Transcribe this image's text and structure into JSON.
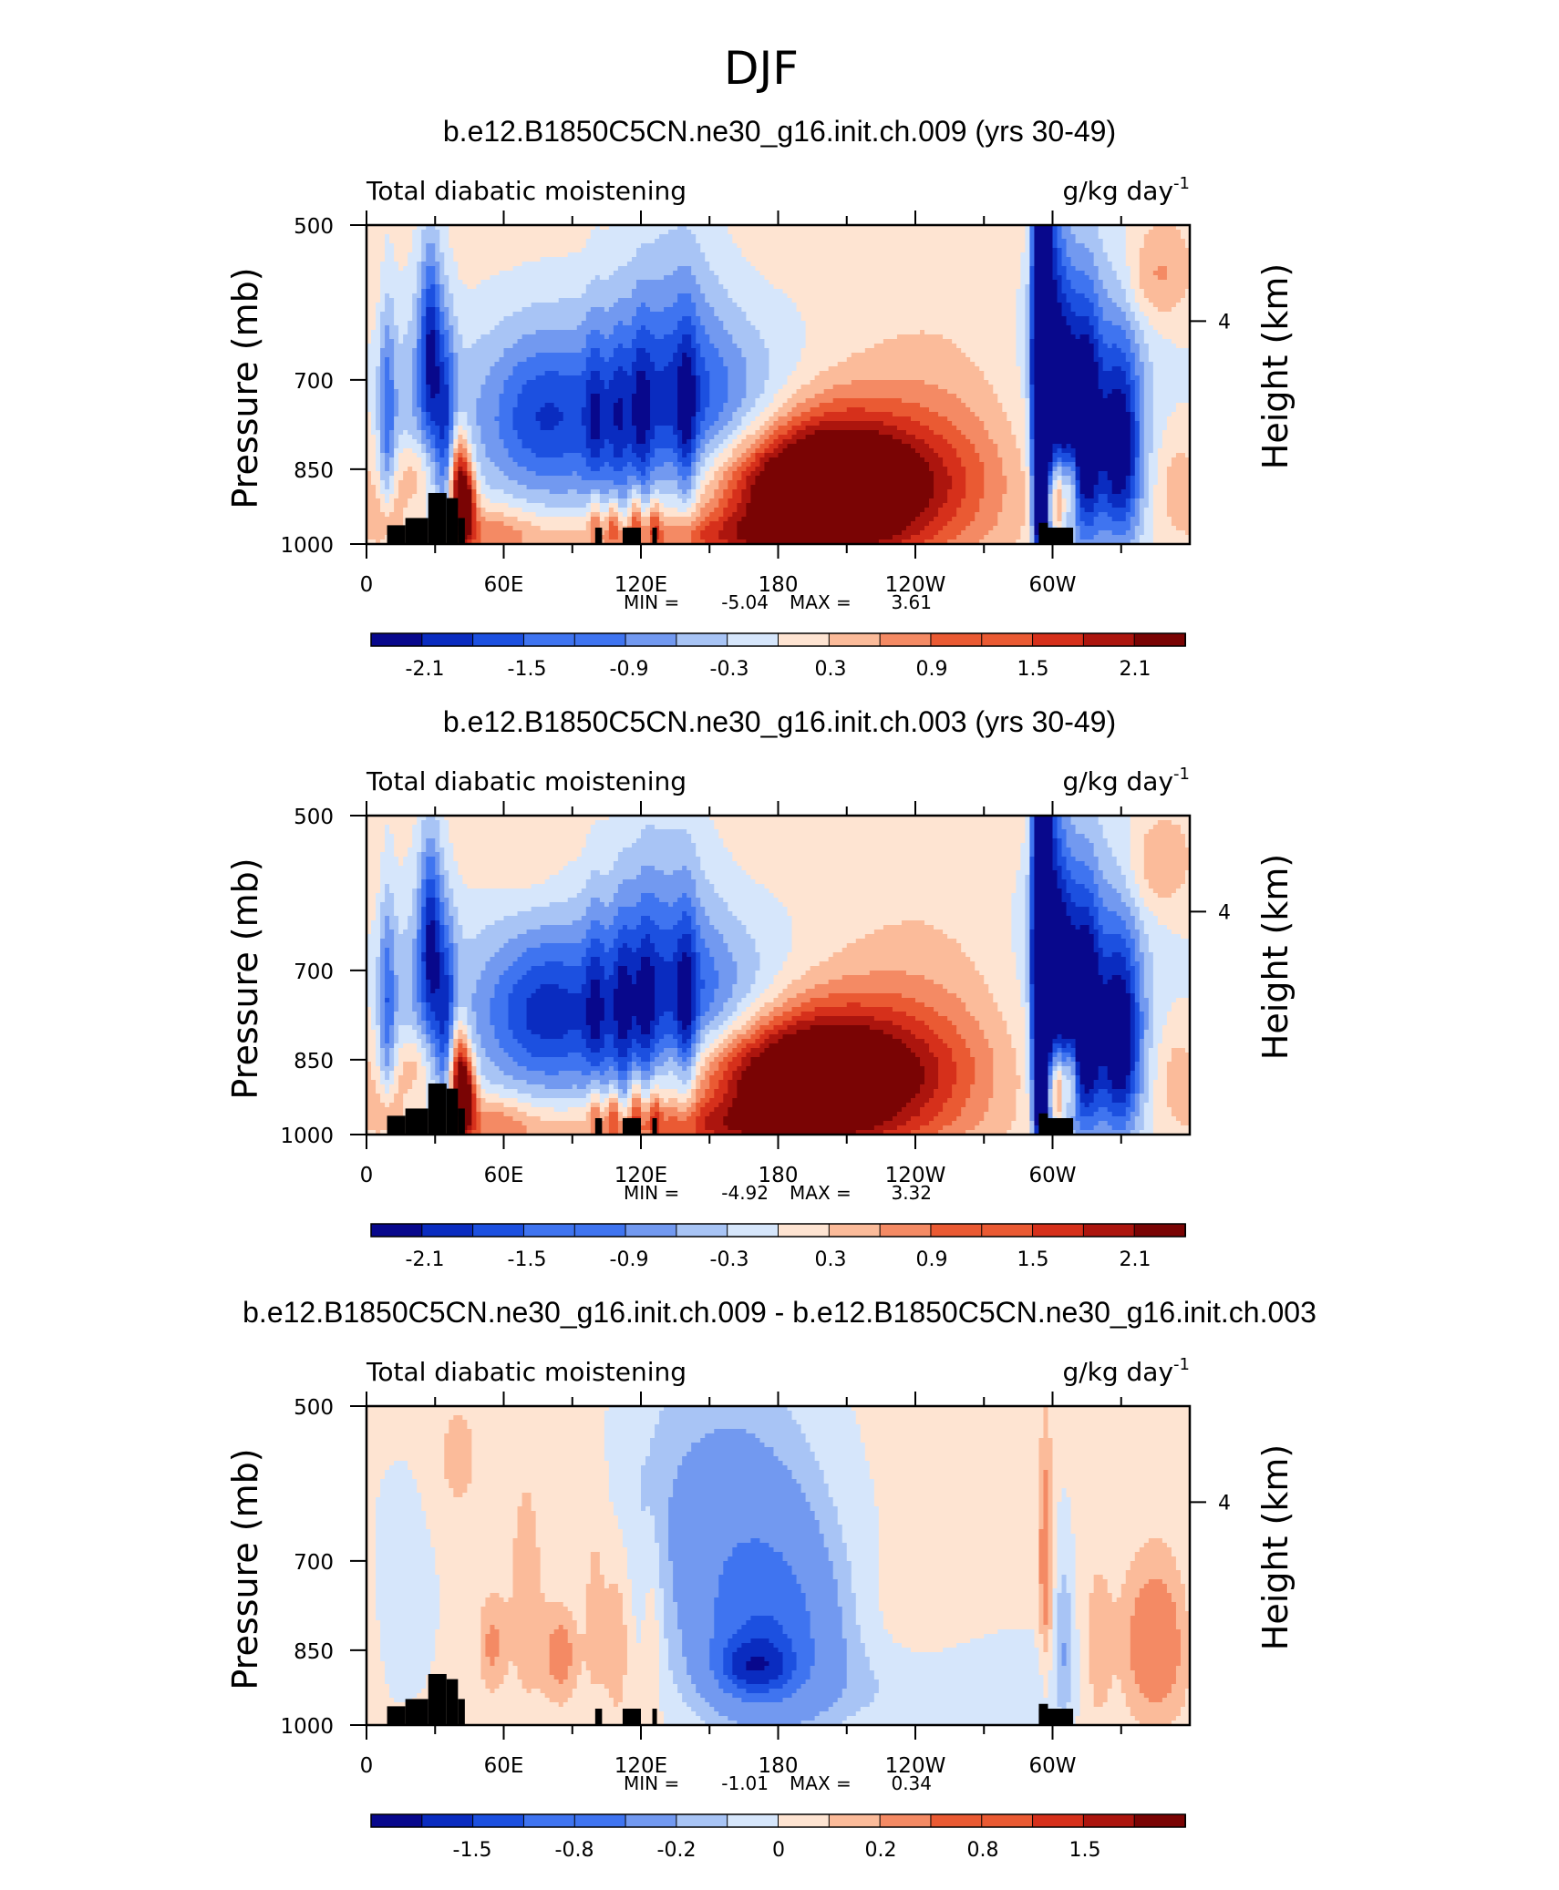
{
  "figure_title": "DJF",
  "chart_data": [
    {
      "type": "heatmap",
      "title": "b.e12.B1850C5CN.ne30_g16.init.ch.009 (yrs 30-49)",
      "subtitle_left": "Total diabatic moistening",
      "units": "g/kg day",
      "units_exponent": "-1",
      "ylabel": "Pressure (mb)",
      "ylabel_right": "Height (km)",
      "x_ticklabels": [
        "0",
        "60E",
        "120E",
        "180",
        "120W",
        "60W"
      ],
      "y_ticklabels": [
        "500",
        "700",
        "850",
        "1000"
      ],
      "right_ticklabels": [
        "4"
      ],
      "stats": {
        "min_label": "MIN =",
        "min": "-5.04",
        "max_label": "MAX =",
        "max": "3.61"
      },
      "colorbar_labels": [
        "-2.1",
        "-1.5",
        "-0.9",
        "-0.3",
        "0.3",
        "0.9",
        "1.5",
        "2.1"
      ],
      "colorbar_colors": [
        "#08088c",
        "#0a2cc0",
        "#1c50e0",
        "#3f74f0",
        "#7299f0",
        "#a8c4f5",
        "#d6e6fb",
        "#fee4d2",
        "#fbbb9a",
        "#f48a64",
        "#ea5a33",
        "#d6301b",
        "#ac150e",
        "#7a0404"
      ],
      "features": [
        {
          "lon": 195,
          "p": 880,
          "v": 3.2,
          "wl": 30,
          "wp": 95
        },
        {
          "lon": 245,
          "p": 830,
          "v": 0.7,
          "wl": 32,
          "wp": 125
        },
        {
          "lon": 240,
          "p": 890,
          "v": 0.5,
          "wl": 28,
          "wp": 70
        },
        {
          "lon": 155,
          "p": 985,
          "v": 0.9,
          "wl": 60,
          "wp": 35
        },
        {
          "lon": 55,
          "p": 980,
          "v": 0.7,
          "wl": 12,
          "wp": 45
        },
        {
          "lon": 115,
          "p": 755,
          "v": -1.3,
          "wl": 52,
          "wp": 115
        },
        {
          "lon": 75,
          "p": 760,
          "v": -0.6,
          "wl": 14,
          "wp": 85
        },
        {
          "lon": 135,
          "p": 650,
          "v": -0.6,
          "wl": 15,
          "wp": 150
        },
        {
          "lon": 165,
          "p": 760,
          "v": -0.4,
          "wl": 18,
          "wp": 70
        },
        {
          "lon": 100,
          "p": 780,
          "v": -0.6,
          "wl": 3,
          "wp": 130
        },
        {
          "lon": 110,
          "p": 775,
          "v": -0.5,
          "wl": 3,
          "wp": 125
        },
        {
          "lon": 120,
          "p": 770,
          "v": -0.6,
          "wl": 3,
          "wp": 125
        },
        {
          "lon": 140,
          "p": 780,
          "v": -0.8,
          "wl": 3,
          "wp": 120
        },
        {
          "lon": 28,
          "p": 650,
          "v": -1.6,
          "wl": 3.5,
          "wp": 100
        },
        {
          "lon": 35,
          "p": 780,
          "v": -1.2,
          "wl": 3.5,
          "wp": 120
        },
        {
          "lon": 9,
          "p": 760,
          "v": -1.0,
          "wl": 2.5,
          "wp": 130
        },
        {
          "lon": 20,
          "p": 760,
          "v": -0.4,
          "wl": 7,
          "wp": 150
        },
        {
          "lon": 40,
          "p": 880,
          "v": 2.0,
          "wl": 3,
          "wp": 75
        },
        {
          "lon": 44,
          "p": 920,
          "v": 1.8,
          "wl": 3,
          "wp": 55
        },
        {
          "lon": 20,
          "p": 860,
          "v": 0.8,
          "wl": 6,
          "wp": 50
        },
        {
          "lon": 10,
          "p": 950,
          "v": 0.6,
          "wl": 5,
          "wp": 45
        },
        {
          "lon": 100,
          "p": 940,
          "v": 0.9,
          "wl": 2,
          "wp": 50
        },
        {
          "lon": 108,
          "p": 950,
          "v": 0.9,
          "wl": 2,
          "wp": 40
        },
        {
          "lon": 118,
          "p": 940,
          "v": 1.0,
          "wl": 2,
          "wp": 45
        },
        {
          "lon": 126,
          "p": 950,
          "v": 0.8,
          "wl": 2,
          "wp": 40
        },
        {
          "lon": 295,
          "p": 700,
          "v": -4.8,
          "wl": 2.5,
          "wp": 260
        },
        {
          "lon": 300,
          "p": 680,
          "v": -1.3,
          "wl": 3.5,
          "wp": 200
        },
        {
          "lon": 306,
          "p": 760,
          "v": -1.5,
          "wl": 4,
          "wp": 150
        },
        {
          "lon": 315,
          "p": 780,
          "v": -1.6,
          "wl": 4,
          "wp": 140
        },
        {
          "lon": 330,
          "p": 820,
          "v": -1.5,
          "wl": 6,
          "wp": 120
        },
        {
          "lon": 320,
          "p": 800,
          "v": -0.9,
          "wl": 14,
          "wp": 160
        },
        {
          "lon": 310,
          "p": 650,
          "v": -0.4,
          "wl": 22,
          "wp": 150
        },
        {
          "lon": 298,
          "p": 900,
          "v": 1.2,
          "wl": 2.5,
          "wp": 55
        },
        {
          "lon": 303,
          "p": 900,
          "v": 1.8,
          "wl": 2,
          "wp": 60
        },
        {
          "lon": 308,
          "p": 880,
          "v": 1.4,
          "wl": 2,
          "wp": 55
        },
        {
          "lon": 345,
          "p": 560,
          "v": 0.6,
          "wl": 10,
          "wp": 40
        },
        {
          "lon": 355,
          "p": 880,
          "v": 0.5,
          "wl": 8,
          "wp": 80
        }
      ]
    },
    {
      "type": "heatmap",
      "title": "b.e12.B1850C5CN.ne30_g16.init.ch.003 (yrs 30-49)",
      "subtitle_left": "Total diabatic moistening",
      "units": "g/kg day",
      "units_exponent": "-1",
      "ylabel": "Pressure (mb)",
      "ylabel_right": "Height (km)",
      "x_ticklabels": [
        "0",
        "60E",
        "120E",
        "180",
        "120W",
        "60W"
      ],
      "y_ticklabels": [
        "500",
        "700",
        "850",
        "1000"
      ],
      "right_ticklabels": [
        "4"
      ],
      "stats": {
        "min_label": "MIN =",
        "min": "-4.92",
        "max_label": "MAX =",
        "max": "3.32"
      },
      "colorbar_labels": [
        "-2.1",
        "-1.5",
        "-0.9",
        "-0.3",
        "0.3",
        "0.9",
        "1.5",
        "2.1"
      ],
      "colorbar_colors": [
        "#08088c",
        "#0a2cc0",
        "#1c50e0",
        "#3f74f0",
        "#7299f0",
        "#a8c4f5",
        "#d6e6fb",
        "#fee4d2",
        "#fbbb9a",
        "#f48a64",
        "#ea5a33",
        "#d6301b",
        "#ac150e",
        "#7a0404"
      ],
      "features": [
        {
          "lon": 188,
          "p": 880,
          "v": 3.0,
          "wl": 32,
          "wp": 90
        },
        {
          "lon": 238,
          "p": 830,
          "v": 0.7,
          "wl": 32,
          "wp": 125
        },
        {
          "lon": 235,
          "p": 890,
          "v": 0.5,
          "wl": 28,
          "wp": 70
        },
        {
          "lon": 150,
          "p": 985,
          "v": 0.9,
          "wl": 60,
          "wp": 35
        },
        {
          "lon": 55,
          "p": 980,
          "v": 0.7,
          "wl": 12,
          "wp": 45
        },
        {
          "lon": 110,
          "p": 765,
          "v": -1.4,
          "wl": 50,
          "wp": 110
        },
        {
          "lon": 75,
          "p": 770,
          "v": -0.6,
          "wl": 14,
          "wp": 85
        },
        {
          "lon": 130,
          "p": 650,
          "v": -0.6,
          "wl": 15,
          "wp": 150
        },
        {
          "lon": 160,
          "p": 770,
          "v": -0.4,
          "wl": 18,
          "wp": 70
        },
        {
          "lon": 100,
          "p": 780,
          "v": -0.6,
          "wl": 3,
          "wp": 130
        },
        {
          "lon": 112,
          "p": 775,
          "v": -0.6,
          "wl": 3,
          "wp": 125
        },
        {
          "lon": 122,
          "p": 770,
          "v": -0.5,
          "wl": 3,
          "wp": 125
        },
        {
          "lon": 140,
          "p": 780,
          "v": -0.9,
          "wl": 3,
          "wp": 120
        },
        {
          "lon": 28,
          "p": 650,
          "v": -1.6,
          "wl": 3.5,
          "wp": 100
        },
        {
          "lon": 35,
          "p": 780,
          "v": -1.2,
          "wl": 3.5,
          "wp": 120
        },
        {
          "lon": 9,
          "p": 760,
          "v": -1.0,
          "wl": 2.5,
          "wp": 130
        },
        {
          "lon": 20,
          "p": 760,
          "v": -0.4,
          "wl": 7,
          "wp": 150
        },
        {
          "lon": 40,
          "p": 880,
          "v": 2.0,
          "wl": 3,
          "wp": 75
        },
        {
          "lon": 44,
          "p": 920,
          "v": 1.8,
          "wl": 3,
          "wp": 55
        },
        {
          "lon": 20,
          "p": 860,
          "v": 0.8,
          "wl": 6,
          "wp": 50
        },
        {
          "lon": 10,
          "p": 950,
          "v": 0.6,
          "wl": 5,
          "wp": 45
        },
        {
          "lon": 100,
          "p": 940,
          "v": 0.9,
          "wl": 2,
          "wp": 50
        },
        {
          "lon": 108,
          "p": 950,
          "v": 0.9,
          "wl": 2,
          "wp": 40
        },
        {
          "lon": 118,
          "p": 940,
          "v": 1.0,
          "wl": 2,
          "wp": 45
        },
        {
          "lon": 126,
          "p": 950,
          "v": 0.8,
          "wl": 2,
          "wp": 40
        },
        {
          "lon": 295,
          "p": 700,
          "v": -4.7,
          "wl": 2.5,
          "wp": 260
        },
        {
          "lon": 300,
          "p": 680,
          "v": -1.3,
          "wl": 3.5,
          "wp": 200
        },
        {
          "lon": 306,
          "p": 760,
          "v": -1.5,
          "wl": 4,
          "wp": 150
        },
        {
          "lon": 315,
          "p": 780,
          "v": -1.6,
          "wl": 4,
          "wp": 140
        },
        {
          "lon": 330,
          "p": 820,
          "v": -1.6,
          "wl": 6,
          "wp": 120
        },
        {
          "lon": 320,
          "p": 800,
          "v": -0.9,
          "wl": 14,
          "wp": 160
        },
        {
          "lon": 310,
          "p": 650,
          "v": -0.4,
          "wl": 22,
          "wp": 150
        },
        {
          "lon": 298,
          "p": 900,
          "v": 1.2,
          "wl": 2.5,
          "wp": 55
        },
        {
          "lon": 303,
          "p": 900,
          "v": 1.8,
          "wl": 2,
          "wp": 60
        },
        {
          "lon": 308,
          "p": 880,
          "v": 1.4,
          "wl": 2,
          "wp": 55
        },
        {
          "lon": 345,
          "p": 560,
          "v": 0.5,
          "wl": 10,
          "wp": 40
        },
        {
          "lon": 355,
          "p": 880,
          "v": 0.5,
          "wl": 8,
          "wp": 80
        },
        {
          "lon": 70,
          "p": 560,
          "v": 0.2,
          "wl": 12,
          "wp": 40
        }
      ]
    },
    {
      "type": "heatmap",
      "title": "b.e12.B1850C5CN.ne30_g16.init.ch.009 - b.e12.B1850C5CN.ne30_g16.init.ch.003",
      "subtitle_left": "Total diabatic moistening",
      "units": "g/kg day",
      "units_exponent": "-1",
      "ylabel": "Pressure (mb)",
      "ylabel_right": "Height (km)",
      "x_ticklabels": [
        "0",
        "60E",
        "120E",
        "180",
        "120W",
        "60W"
      ],
      "y_ticklabels": [
        "500",
        "700",
        "850",
        "1000"
      ],
      "right_ticklabels": [
        "4"
      ],
      "stats": {
        "min_label": "MIN =",
        "min": "-1.01",
        "max_label": "MAX =",
        "max": "0.34"
      },
      "colorbar_labels": [
        "-1.5",
        "-0.8",
        "-0.2",
        "0",
        "0.2",
        "0.8",
        "1.5"
      ],
      "colorbar_colors": [
        "#08088c",
        "#0a2cc0",
        "#1c50e0",
        "#3f74f0",
        "#7299f0",
        "#a8c4f5",
        "#d6e6fb",
        "#fee4d2",
        "#fbbb9a",
        "#f48a64",
        "#ea5a33",
        "#d6301b",
        "#ac150e",
        "#7a0404"
      ],
      "features": [
        {
          "lon": 170,
          "p": 880,
          "v": -0.9,
          "wl": 10,
          "wp": 35
        },
        {
          "lon": 175,
          "p": 830,
          "v": -0.55,
          "wl": 20,
          "wp": 110
        },
        {
          "lon": 170,
          "p": 720,
          "v": -0.3,
          "wl": 25,
          "wp": 160
        },
        {
          "lon": 140,
          "p": 600,
          "v": -0.15,
          "wl": 25,
          "wp": 120
        },
        {
          "lon": 220,
          "p": 920,
          "v": -0.12,
          "wl": 40,
          "wp": 70
        },
        {
          "lon": 15,
          "p": 760,
          "v": -0.12,
          "wl": 10,
          "wp": 120
        },
        {
          "lon": 270,
          "p": 900,
          "v": -0.12,
          "wl": 25,
          "wp": 80
        },
        {
          "lon": 345,
          "p": 840,
          "v": 0.32,
          "wl": 10,
          "wp": 100
        },
        {
          "lon": 85,
          "p": 860,
          "v": 0.25,
          "wl": 5,
          "wp": 60
        },
        {
          "lon": 55,
          "p": 840,
          "v": 0.2,
          "wl": 4,
          "wp": 60
        },
        {
          "lon": 100,
          "p": 760,
          "v": 0.12,
          "wl": 4,
          "wp": 150
        },
        {
          "lon": 110,
          "p": 820,
          "v": 0.15,
          "wl": 4,
          "wp": 120
        },
        {
          "lon": 125,
          "p": 800,
          "v": 0.12,
          "wl": 3,
          "wp": 120
        },
        {
          "lon": 70,
          "p": 760,
          "v": 0.12,
          "wl": 6,
          "wp": 160
        },
        {
          "lon": 297,
          "p": 700,
          "v": 0.3,
          "wl": 2,
          "wp": 120
        },
        {
          "lon": 250,
          "p": 860,
          "v": 0.1,
          "wl": 25,
          "wp": 90
        },
        {
          "lon": 320,
          "p": 850,
          "v": 0.15,
          "wl": 4,
          "wp": 100
        },
        {
          "lon": 305,
          "p": 830,
          "v": -0.2,
          "wl": 3,
          "wp": 120
        },
        {
          "lon": 40,
          "p": 560,
          "v": 0.1,
          "wl": 8,
          "wp": 60
        }
      ]
    }
  ]
}
